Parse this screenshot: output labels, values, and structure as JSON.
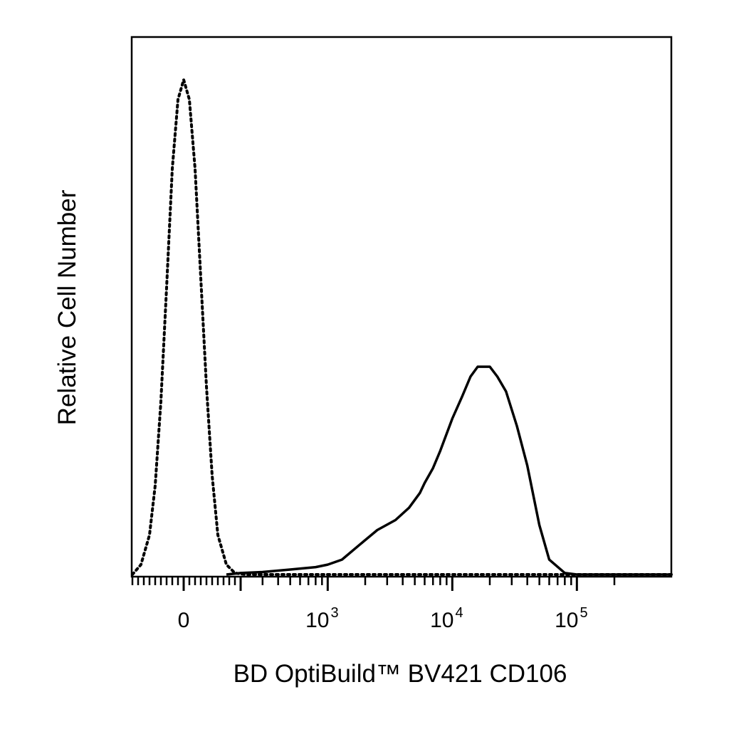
{
  "chart_data": {
    "type": "line",
    "title": "",
    "xlabel": "BD OptiBuild™  BV421 CD106",
    "ylabel": "Relative Cell Number",
    "x_scale": "biexponential (linear near 0, log above)",
    "xlim": [
      -300,
      200000
    ],
    "ylim": [
      0,
      100
    ],
    "grid": false,
    "x_ticks": [
      {
        "value": 0,
        "label": "0",
        "sup": ""
      },
      {
        "value": 1000,
        "label": "10",
        "sup": "3"
      },
      {
        "value": 10000,
        "label": "10",
        "sup": "4"
      },
      {
        "value": 100000,
        "label": "10",
        "sup": "5"
      }
    ],
    "series": [
      {
        "style": "dotted",
        "color": "#000000",
        "x": [
          -180,
          -150,
          -120,
          -100,
          -80,
          -60,
          -40,
          -20,
          0,
          20,
          40,
          60,
          80,
          100,
          120,
          150,
          180,
          220
        ],
        "y": [
          0,
          2,
          8,
          18,
          35,
          58,
          82,
          96,
          100,
          96,
          82,
          60,
          38,
          20,
          8,
          2,
          0.3,
          0
        ]
      },
      {
        "style": "solid",
        "color": "#000000",
        "x": [
          150,
          200,
          300,
          500,
          800,
          1000,
          1300,
          1800,
          2500,
          3500,
          4500,
          5500,
          6000,
          7000,
          8000,
          10000,
          12000,
          14000,
          16000,
          18000,
          20000,
          23000,
          27000,
          33000,
          40000,
          50000,
          60000,
          80000,
          100000,
          150000,
          200000
        ],
        "y": [
          0,
          0.3,
          0.5,
          1.0,
          1.5,
          2.0,
          3.0,
          6.0,
          9.0,
          11.0,
          13.5,
          16.5,
          18.5,
          21.5,
          25.0,
          31.5,
          36.0,
          40.0,
          42.0,
          42.0,
          42.0,
          40.0,
          37.0,
          30.0,
          22.0,
          10.0,
          3.0,
          0.3,
          0,
          0,
          0
        ]
      }
    ]
  }
}
